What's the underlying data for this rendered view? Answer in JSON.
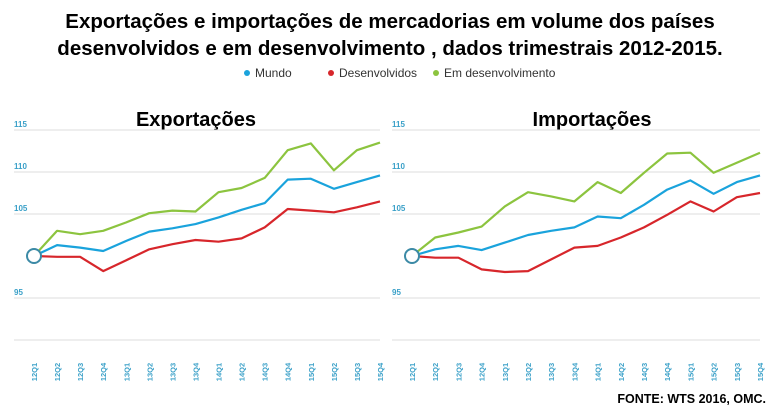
{
  "title_line1": "Exportações e importações de mercadorias em volume dos países",
  "title_line2": "desenvolvidos e em desenvolvimento , dados trimestrais 2012-2015.",
  "source": "FONTE: WTS 2016, OMC.",
  "colors": {
    "Mundo": "#1aa3dc",
    "Desenvolvidos": "#d7262b",
    "Em desenvolvimento": "#8cc43f",
    "grid": "#dcdcdc",
    "tick": "#3aa0c8"
  },
  "legend": [
    {
      "name": "Mundo",
      "color": "#1aa3dc"
    },
    {
      "name": "Desenvolvidos",
      "color": "#d7262b"
    },
    {
      "name": "Em desenvolvimento",
      "color": "#8cc43f"
    }
  ],
  "chart_data": [
    {
      "type": "line",
      "title": "Exportações",
      "categories": [
        "12Q1",
        "12Q2",
        "12Q3",
        "12Q4",
        "13Q1",
        "13Q2",
        "13Q3",
        "13Q4",
        "14Q1",
        "14Q2",
        "14Q3",
        "14Q4",
        "15Q1",
        "15Q2",
        "15Q3",
        "15Q4"
      ],
      "yticks": [
        95,
        105,
        110,
        115
      ],
      "ylim": [
        90,
        115
      ],
      "grid": true,
      "series": [
        {
          "name": "Mundo",
          "values": [
            100,
            101.3,
            101.0,
            100.6,
            101.8,
            102.9,
            103.3,
            103.8,
            104.6,
            105.5,
            106.3,
            109.1,
            109.2,
            108.0,
            108.8,
            109.6
          ]
        },
        {
          "name": "Desenvolvidos",
          "values": [
            100,
            99.9,
            99.9,
            98.2,
            99.5,
            100.8,
            101.4,
            101.9,
            101.7,
            102.1,
            103.4,
            105.6,
            105.4,
            105.2,
            105.8,
            106.5
          ]
        },
        {
          "name": "Em desenvolvimento",
          "values": [
            100,
            103.0,
            102.6,
            103.0,
            104.0,
            105.1,
            105.4,
            105.3,
            107.6,
            108.1,
            109.3,
            112.6,
            113.4,
            110.2,
            112.6,
            113.5
          ]
        }
      ]
    },
    {
      "type": "line",
      "title": "Importações",
      "categories": [
        "12Q1",
        "12Q2",
        "12Q3",
        "12Q4",
        "13Q1",
        "13Q2",
        "13Q3",
        "13Q4",
        "14Q1",
        "14Q2",
        "14Q3",
        "14Q4",
        "15Q1",
        "15Q2",
        "15Q3",
        "15Q4"
      ],
      "yticks": [
        95,
        105,
        110,
        115
      ],
      "ylim": [
        90,
        115
      ],
      "grid": true,
      "series": [
        {
          "name": "Mundo",
          "values": [
            100,
            100.8,
            101.2,
            100.7,
            101.6,
            102.5,
            103.0,
            103.4,
            104.7,
            104.5,
            106.1,
            107.9,
            109.0,
            107.4,
            108.8,
            109.6
          ]
        },
        {
          "name": "Desenvolvidos",
          "values": [
            100,
            99.8,
            99.8,
            98.4,
            98.1,
            98.2,
            99.6,
            101.0,
            101.2,
            102.2,
            103.4,
            104.9,
            106.5,
            105.3,
            107.0,
            107.5
          ]
        },
        {
          "name": "Em desenvolvimento",
          "values": [
            100,
            102.2,
            102.8,
            103.5,
            105.9,
            107.6,
            107.1,
            106.5,
            108.8,
            107.5,
            109.9,
            112.2,
            112.3,
            109.9,
            111.1,
            112.3
          ]
        }
      ]
    }
  ]
}
